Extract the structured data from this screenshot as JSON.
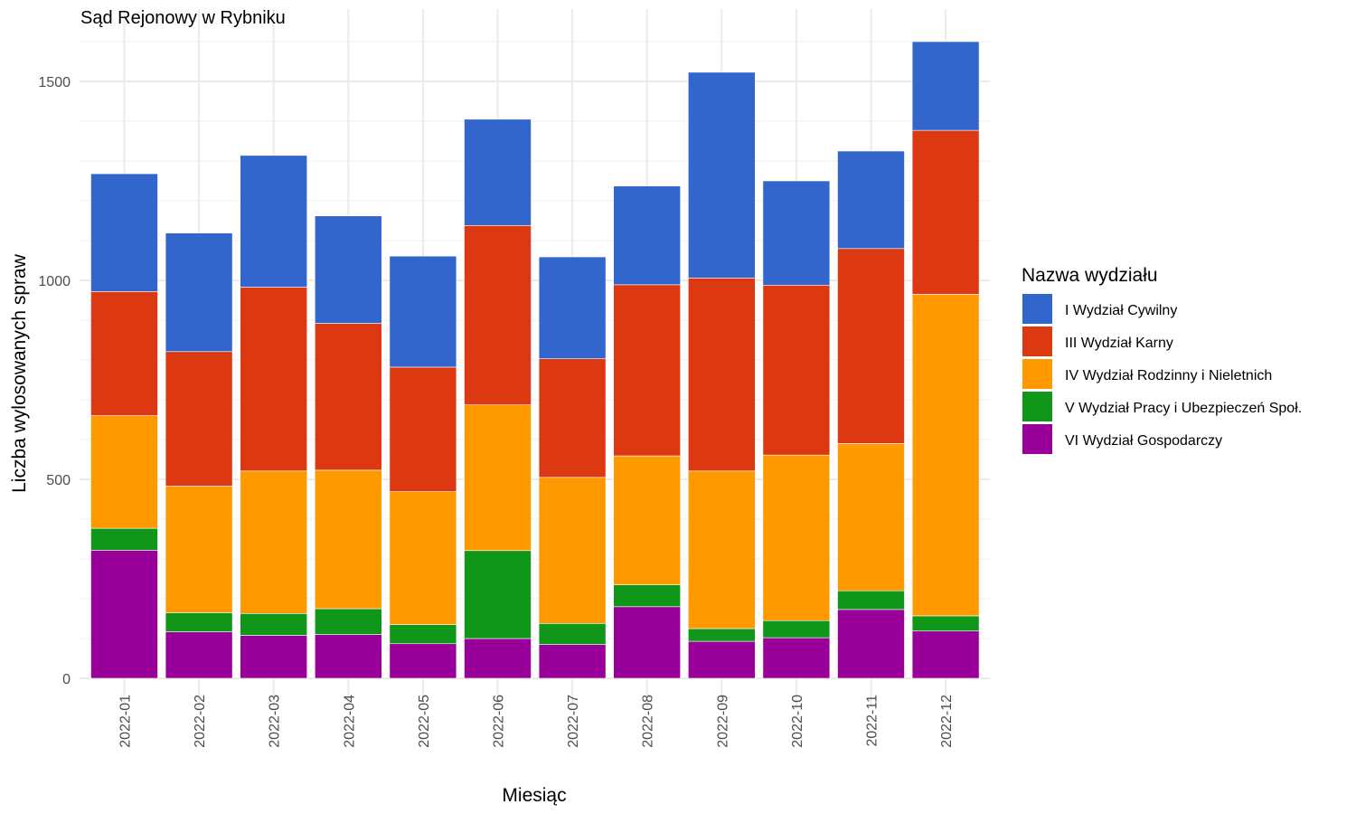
{
  "chart_data": {
    "type": "bar",
    "stacked": true,
    "title": "Sąd Rejonowy w Rybniku",
    "xlabel": "Miesiąc",
    "ylabel": "Liczba wylosowanych spraw",
    "ylim": [
      0,
      1600
    ],
    "y_ticks": [
      0,
      500,
      1000,
      1500
    ],
    "grid": true,
    "legend_position": "right",
    "legend_title": "Nazwa wydziału",
    "categories": [
      "2022-01",
      "2022-02",
      "2022-03",
      "2022-04",
      "2022-05",
      "2022-06",
      "2022-07",
      "2022-08",
      "2022-09",
      "2022-10",
      "2022-11",
      "2022-12"
    ],
    "series": [
      {
        "name": "VI Wydział Gospodarczy",
        "color": "#990099",
        "values": [
          322,
          117,
          108,
          110,
          87,
          100,
          85,
          180,
          93,
          102,
          173,
          119
        ]
      },
      {
        "name": "V Wydział Pracy i Ubezpieczeń Społ.",
        "color": "#109618",
        "values": [
          55,
          48,
          55,
          65,
          48,
          221,
          53,
          55,
          32,
          43,
          47,
          38
        ]
      },
      {
        "name": "IV Wydział Rodzinny i Nieletnich",
        "color": "#FF9900",
        "values": [
          283,
          318,
          358,
          348,
          334,
          366,
          367,
          324,
          396,
          416,
          370,
          808
        ]
      },
      {
        "name": "III Wydział Karny",
        "color": "#DC3912",
        "values": [
          312,
          338,
          462,
          369,
          313,
          451,
          298,
          430,
          485,
          427,
          490,
          412
        ]
      },
      {
        "name": "I Wydział Cywilny",
        "color": "#3366CC",
        "values": [
          296,
          298,
          331,
          270,
          279,
          267,
          256,
          248,
          517,
          262,
          245,
          223
        ]
      }
    ],
    "legend_order": [
      "I Wydział Cywilny",
      "III Wydział Karny",
      "IV Wydział Rodzinny i Nieletnich",
      "V Wydział Pracy i Ubezpieczeń Społ.",
      "VI Wydział Gospodarczy"
    ]
  }
}
